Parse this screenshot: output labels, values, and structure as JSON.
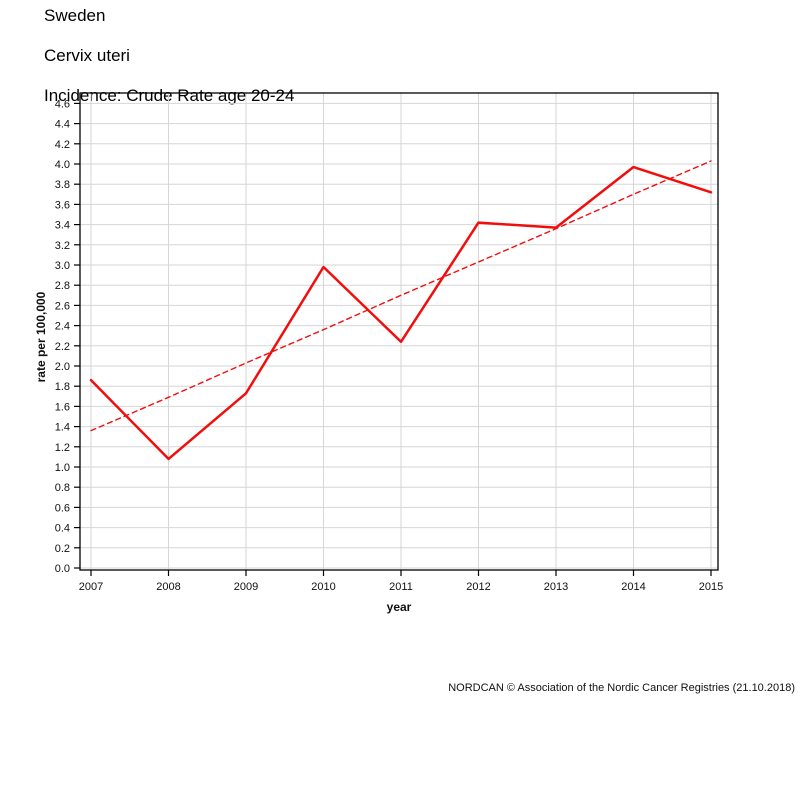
{
  "title": {
    "line1": "Sweden",
    "line2": "Cervix uteri",
    "line3": "Incidence: Crude Rate age 20-24"
  },
  "footer_text": "NORDCAN © Association of the Nordic Cancer Registries (21.10.2018)",
  "chart_data": {
    "type": "line",
    "title": "Sweden - Cervix uteri - Incidence: Crude Rate age 20-24",
    "xlabel": "year",
    "ylabel": "rate per 100,000",
    "x": [
      2007,
      2008,
      2009,
      2010,
      2011,
      2012,
      2013,
      2014,
      2015
    ],
    "series": [
      {
        "name": "crude-rate",
        "dashed": false,
        "stroke_width": 2.5,
        "values": [
          1.86,
          1.08,
          1.73,
          2.98,
          2.24,
          3.42,
          3.37,
          3.97,
          3.72
        ]
      },
      {
        "name": "trend-line",
        "dashed": true,
        "stroke_width": 1.4,
        "values": [
          1.36,
          1.69,
          2.03,
          2.36,
          2.7,
          3.03,
          3.36,
          3.7,
          4.03
        ]
      }
    ],
    "ylim": [
      0.0,
      4.6
    ],
    "ytick_step": 0.2,
    "grid": true,
    "legend": "none",
    "colors": {
      "line": "#f20d0d",
      "grid": "#d6d6d6",
      "axis": "#000000",
      "tick_text": "#111111"
    }
  }
}
